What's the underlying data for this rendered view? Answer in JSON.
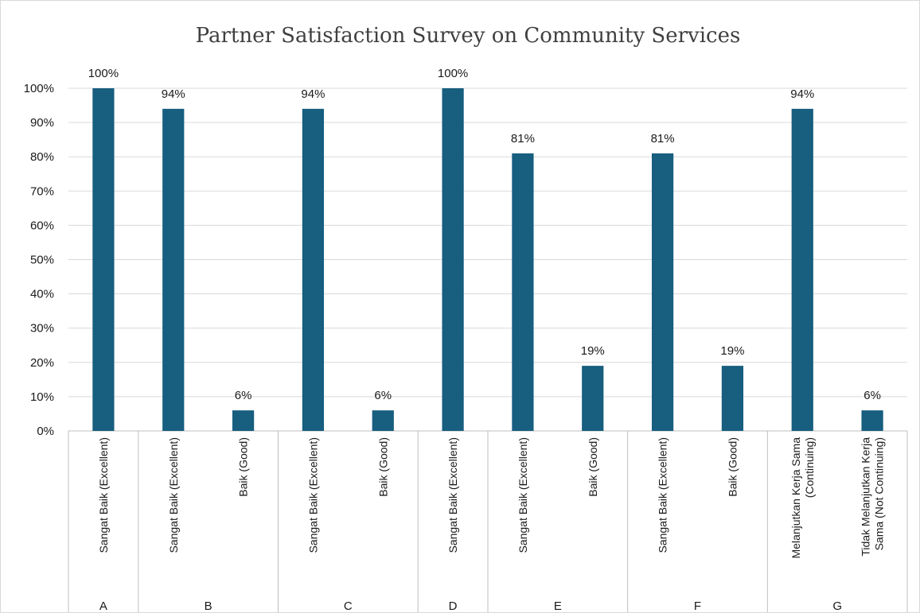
{
  "chart_data": {
    "type": "bar",
    "title": "Partner Satisfaction Survey on Community Services",
    "xlabel": "",
    "ylabel": "",
    "ylim": [
      0,
      100
    ],
    "y_ticks": [
      "0%",
      "10%",
      "20%",
      "30%",
      "40%",
      "50%",
      "60%",
      "70%",
      "80%",
      "90%",
      "100%"
    ],
    "grid": true,
    "bar_color": "#175e7f",
    "groups": [
      {
        "name": "A",
        "bars": [
          {
            "category": "Sangat Baik (Excellent)",
            "value": 100,
            "label": "100%"
          }
        ]
      },
      {
        "name": "B",
        "bars": [
          {
            "category": "Sangat Baik (Excellent)",
            "value": 94,
            "label": "94%"
          },
          {
            "category": "Baik (Good)",
            "value": 6,
            "label": "6%"
          }
        ]
      },
      {
        "name": "C",
        "bars": [
          {
            "category": "Sangat Baik (Excellent)",
            "value": 94,
            "label": "94%"
          },
          {
            "category": "Baik (Good)",
            "value": 6,
            "label": "6%"
          }
        ]
      },
      {
        "name": "D",
        "bars": [
          {
            "category": "Sangat Baik (Excellent)",
            "value": 100,
            "label": "100%"
          }
        ]
      },
      {
        "name": "E",
        "bars": [
          {
            "category": "Sangat Baik (Excellent)",
            "value": 81,
            "label": "81%"
          },
          {
            "category": "Baik (Good)",
            "value": 19,
            "label": "19%"
          }
        ]
      },
      {
        "name": "F",
        "bars": [
          {
            "category": "Sangat Baik (Excellent)",
            "value": 81,
            "label": "81%"
          },
          {
            "category": "Baik (Good)",
            "value": 19,
            "label": "19%"
          }
        ]
      },
      {
        "name": "G",
        "bars": [
          {
            "category": "Melanjutkan Kerja Sama (Continuing)",
            "value": 94,
            "label": "94%"
          },
          {
            "category": "Tidak Melanjutkan Kerja Sama (Not Continuing)",
            "value": 6,
            "label": "6%"
          }
        ]
      }
    ]
  }
}
